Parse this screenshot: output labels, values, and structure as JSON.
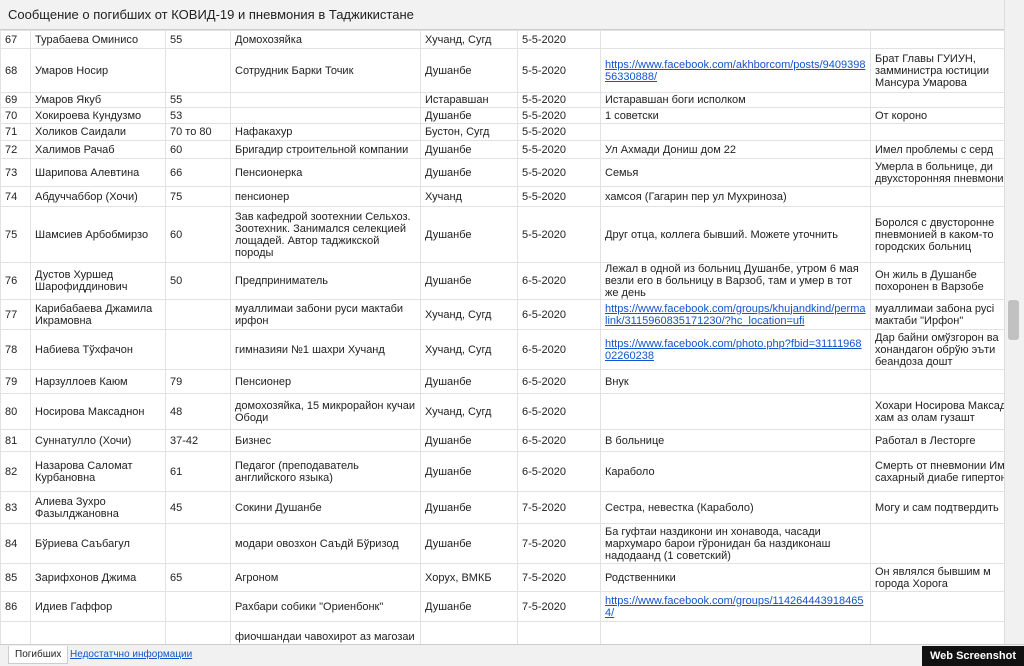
{
  "header": {
    "title": "Сообщение о погибших от КОВИД-19 и пневмония в Таджикистане"
  },
  "table": {
    "rows": [
      [
        "67",
        "Турабаева Оминисо",
        "55",
        "Домохозяйка",
        "Хучанд, Сугд",
        "5-5-2020",
        null,
        null
      ],
      [
        "68",
        "Умаров Носир",
        null,
        "Сотрудник Барки Точик",
        "Душанбе",
        "5-5-2020",
        "https://www.facebook.com/akhborcom/posts/940939856330888/",
        "Брат Главы ГУИУН, замминистра юстиции Мансура Умарова"
      ],
      [
        "69",
        "Умаров Якуб",
        "55",
        null,
        "Истаравшан",
        "5-5-2020",
        "Истаравшан боги исполком",
        null
      ],
      [
        "70",
        "Хокироева Кундузмо",
        "53",
        null,
        "Душанбе",
        "5-5-2020",
        "1 советски",
        "От короно"
      ],
      [
        "71",
        "Холиков Саидали",
        "70 то 80",
        "Нафакахур",
        "Бустон, Сугд",
        "5-5-2020",
        null,
        null
      ],
      [
        "72",
        "Халимов Рачаб",
        "60",
        "Бригадир строительной компании",
        "Душанбе",
        "5-5-2020",
        "Ул Ахмади Дониш дом 22",
        "Имел проблемы с серд"
      ],
      [
        "73",
        "Шарипова Алевтина",
        "66",
        "Пенсионерка",
        "Душанбе",
        "5-5-2020",
        "Семья",
        "Умерла в больнице, ди двухсторонняя пневмони"
      ],
      [
        "74",
        "Абдуччаббор (Хочи)",
        "75",
        "пенсионер",
        "Хучанд",
        "5-5-2020",
        "хамсоя (Гагарин пер ул Мухриноза)",
        null
      ],
      [
        "75",
        "Шамсиев Арбобмирзо",
        "60",
        "Зав кафедрой зоотехнии Сельхоз. Зоотехник. Занимался селекцией лощадей. Автор таджикской породы",
        "Душанбе",
        "5-5-2020",
        "Друг отца, коллега бывший. Можете уточнить",
        "Боролся с двусторонне пневмонией в каком-то городских больниц"
      ],
      [
        "76",
        "Дустов Хуршед Шарофиддинович",
        "50",
        "Предприниматель",
        "Душанбе",
        "6-5-2020",
        "Лежал в одной из больниц Душанбе, утром 6 мая везли его в больницу в Варзоб, там и умер в тот же день",
        "Он жиль в Душанбе похоронен в Варзобе"
      ],
      [
        "77",
        "Карибабаева Джамила Икрамовна",
        null,
        "муаллимаи забони руси мактаби ирфон",
        "Хучанд, Сугд",
        "6-5-2020",
        "https://www.facebook.com/groups/khujandkind/permalink/3115960835171230/?hc_location=ufi",
        "муаллимаи забона русі мактаби \"Ирфон\""
      ],
      [
        "78",
        "Набиева Тўхфачон",
        null,
        "гимназияи №1 шахри Хучанд",
        "Хучанд, Сугд",
        "6-5-2020",
        "https://www.facebook.com/photo.php?fbid=3111196802260238",
        "Дар байни омўзгорон ва хонандагон обрўю эъти беандоза дошт"
      ],
      [
        "79",
        "Нарзуллоев Каюм",
        "79",
        "Пенсионер",
        "Душанбе",
        "6-5-2020",
        "Внук",
        null
      ],
      [
        "80",
        "Носирова Максаднон",
        "48",
        "домохозяйка, 15 микрорайон кучаи Ободи",
        "Хучанд, Сугд",
        "6-5-2020",
        null,
        "Хохари Носирова Максадчон хам аз олам гузашт"
      ],
      [
        "81",
        "Суннатулло (Хочи)",
        "37-42",
        "Бизнес",
        "Душанбе",
        "6-5-2020",
        "В больнице",
        "Работал в Лесторге"
      ],
      [
        "82",
        "Назарова Саломат Курбановна",
        "61",
        "Педагог (преподаватель английского языка)",
        "Душанбе",
        "6-5-2020",
        "Караболо",
        "Смерть от пневмонии Имела сахарный диабе гипертонию"
      ],
      [
        "83",
        "Алиева Зухро Фазылджановна",
        "45",
        "Сокини Душанбе",
        "Душанбе",
        "7-5-2020",
        "Сестра, невестка (Караболо)",
        "Могу и сам подтвердить"
      ],
      [
        "84",
        "Бўриева Саъбагул",
        null,
        "модари овозхон Саъдй Бўризод",
        "Душанбе",
        "7-5-2020",
        "Ба гуфтаи наздикони ин хонавода, часади мархумаро барои гўронидан ба наздиконаш надодаанд (1 советский)",
        null
      ],
      [
        "85",
        "Зарифхонов Джима",
        "65",
        "Агроном",
        "Хорух, ВМКБ",
        "7-5-2020",
        "Родственники",
        "Он являлся бывшим м города Хорога"
      ],
      [
        "86",
        "Идиев Гаффор",
        null,
        "Рахбари собики \"Ориенбонк\"",
        "Душанбе",
        "7-5-2020",
        "https://www.facebook.com/groups/1142644439184654/",
        null
      ],
      [
        null,
        null,
        null,
        "фиочшандаи чавохирот аз магозаи",
        null,
        null,
        null,
        null
      ]
    ]
  },
  "tabs": [
    "Погибших",
    "Недостатчно информации"
  ],
  "watermark": "Web Screenshot"
}
